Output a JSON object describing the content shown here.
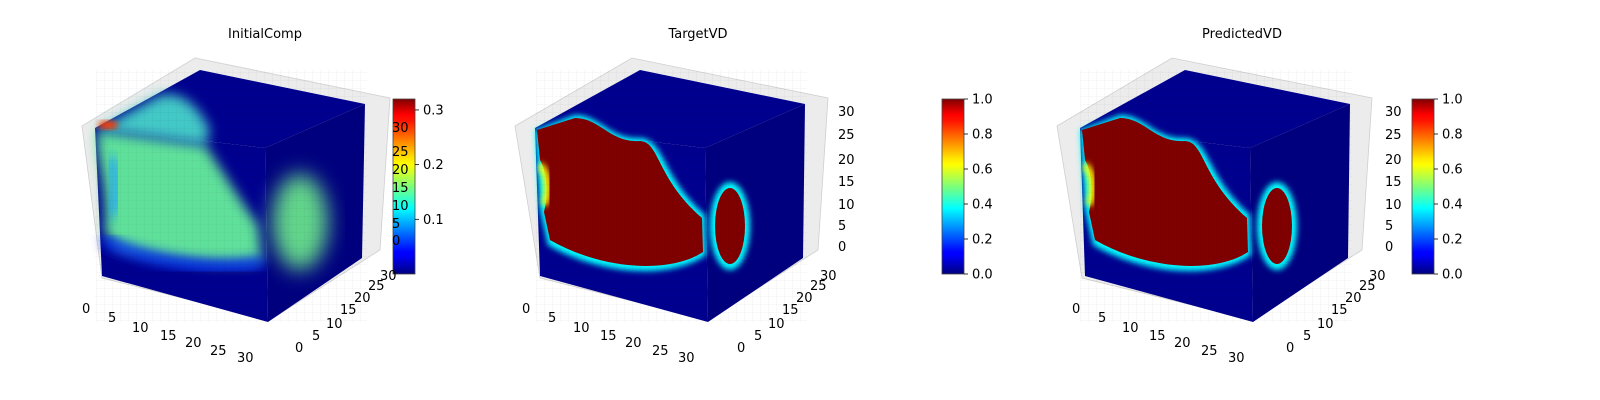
{
  "figure": {
    "panels": [
      {
        "title": "InitialComp",
        "colorbar": {
          "min": 0.0,
          "max": 0.32,
          "ticks": [
            "0.1",
            "0.2",
            "0.3"
          ],
          "tick_values": [
            0.1,
            0.2,
            0.3
          ]
        }
      },
      {
        "title": "TargetVD",
        "colorbar": {
          "min": 0.0,
          "max": 1.0,
          "ticks": [
            "0.0",
            "0.2",
            "0.4",
            "0.6",
            "0.8",
            "1.0"
          ],
          "tick_values": [
            0.0,
            0.2,
            0.4,
            0.6,
            0.8,
            1.0
          ]
        }
      },
      {
        "title": "PredictedVD",
        "colorbar": {
          "min": 0.0,
          "max": 1.0,
          "ticks": [
            "0.0",
            "0.2",
            "0.4",
            "0.6",
            "0.8",
            "1.0"
          ],
          "tick_values": [
            0.0,
            0.2,
            0.4,
            0.6,
            0.8,
            1.0
          ]
        }
      }
    ],
    "axes": {
      "x_ticks": [
        "0",
        "5",
        "10",
        "15",
        "20",
        "25",
        "30"
      ],
      "y_ticks": [
        "0",
        "5",
        "10",
        "15",
        "20",
        "25",
        "30"
      ],
      "z_ticks": [
        "0",
        "5",
        "10",
        "15",
        "20",
        "25",
        "30"
      ]
    },
    "colormap": "jet"
  },
  "chart_data": [
    {
      "type": "heatmap",
      "title": "InitialComp",
      "grid": true,
      "colormap": "jet",
      "xlim": [
        0,
        32
      ],
      "ylim": [
        0,
        32
      ],
      "zlim": [
        0,
        32
      ],
      "value_range": [
        0.0,
        0.32
      ],
      "description_values": {
        "interior_front_face": 0.15,
        "background": 0.0,
        "peak_top_left": 0.32
      }
    },
    {
      "type": "heatmap",
      "title": "TargetVD",
      "grid": true,
      "colormap": "jet",
      "xlim": [
        0,
        32
      ],
      "ylim": [
        0,
        32
      ],
      "zlim": [
        0,
        32
      ],
      "value_range": [
        0.0,
        1.0
      ]
    },
    {
      "type": "heatmap",
      "title": "PredictedVD",
      "grid": true,
      "colormap": "jet",
      "xlim": [
        0,
        32
      ],
      "ylim": [
        0,
        32
      ],
      "zlim": [
        0,
        32
      ],
      "value_range": [
        0.0,
        1.0
      ]
    }
  ]
}
